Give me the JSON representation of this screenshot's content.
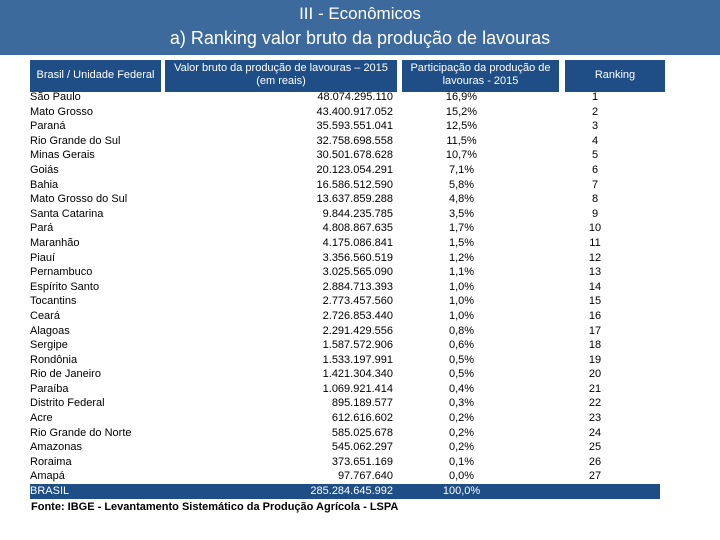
{
  "slide": {
    "section_title": "III - Econômicos",
    "subtitle": "a) Ranking valor  bruto da produção de lavouras"
  },
  "table": {
    "headers": {
      "state": "Brasil / Unidade Federal",
      "value_line1": "Valor  bruto da produção de lavouras – 2015",
      "value_line2": "(em reais)",
      "share_line1": "Participação da produção de",
      "share_line2": "lavouras - 2015",
      "rank": "Ranking"
    },
    "rows": [
      {
        "uf": "São Paulo",
        "value": "48.074.295.110",
        "share": "16,9%",
        "rank": "1"
      },
      {
        "uf": "Mato Grosso",
        "value": "43.400.917.052",
        "share": "15,2%",
        "rank": "2"
      },
      {
        "uf": "Paraná",
        "value": "35.593.551.041",
        "share": "12,5%",
        "rank": "3"
      },
      {
        "uf": "Rio Grande do Sul",
        "value": "32.758.698.558",
        "share": "11,5%",
        "rank": "4"
      },
      {
        "uf": "Minas Gerais",
        "value": "30.501.678.628",
        "share": "10,7%",
        "rank": "5"
      },
      {
        "uf": "Goiás",
        "value": "20.123.054.291",
        "share": "7,1%",
        "rank": "6"
      },
      {
        "uf": "Bahia",
        "value": "16.586.512.590",
        "share": "5,8%",
        "rank": "7"
      },
      {
        "uf": "Mato Grosso do Sul",
        "value": "13.637.859.288",
        "share": "4,8%",
        "rank": "8"
      },
      {
        "uf": "Santa Catarina",
        "value": "9.844.235.785",
        "share": "3,5%",
        "rank": "9"
      },
      {
        "uf": "Pará",
        "value": "4.808.867.635",
        "share": "1,7%",
        "rank": "10"
      },
      {
        "uf": "Maranhão",
        "value": "4.175.086.841",
        "share": "1,5%",
        "rank": "11"
      },
      {
        "uf": "Piauí",
        "value": "3.356.560.519",
        "share": "1,2%",
        "rank": "12"
      },
      {
        "uf": "Pernambuco",
        "value": "3.025.565.090",
        "share": "1,1%",
        "rank": "13"
      },
      {
        "uf": "Espírito Santo",
        "value": "2.884.713.393",
        "share": "1,0%",
        "rank": "14"
      },
      {
        "uf": "Tocantins",
        "value": "2.773.457.560",
        "share": "1,0%",
        "rank": "15"
      },
      {
        "uf": "Ceará",
        "value": "2.726.853.440",
        "share": "1,0%",
        "rank": "16"
      },
      {
        "uf": "Alagoas",
        "value": "2.291.429.556",
        "share": "0,8%",
        "rank": "17"
      },
      {
        "uf": "Sergipe",
        "value": "1.587.572.906",
        "share": "0,6%",
        "rank": "18"
      },
      {
        "uf": "Rondônia",
        "value": "1.533.197.991",
        "share": "0,5%",
        "rank": "19"
      },
      {
        "uf": "Rio de Janeiro",
        "value": "1.421.304.340",
        "share": "0,5%",
        "rank": "20"
      },
      {
        "uf": "Paraíba",
        "value": "1.069.921.414",
        "share": "0,4%",
        "rank": "21"
      },
      {
        "uf": "Distrito Federal",
        "value": "895.189.577",
        "share": "0,3%",
        "rank": "22"
      },
      {
        "uf": "Acre",
        "value": "612.616.602",
        "share": "0,2%",
        "rank": "23"
      },
      {
        "uf": "Rio Grande do Norte",
        "value": "585.025.678",
        "share": "0,2%",
        "rank": "24"
      },
      {
        "uf": "Amazonas",
        "value": "545.062.297",
        "share": "0,2%",
        "rank": "25"
      },
      {
        "uf": "Roraima",
        "value": "373.651.169",
        "share": "0,1%",
        "rank": "26"
      },
      {
        "uf": "Amapá",
        "value": "97.767.640",
        "share": "0,0%",
        "rank": "27"
      }
    ],
    "total": {
      "uf": "BRASIL",
      "value": "285.284.645.992",
      "share": "100,0%",
      "rank": ""
    }
  },
  "source": "Fonte: IBGE - Levantamento Sistemático da Produção Agrícola - LSPA",
  "colors": {
    "banner": "#3d6a9c",
    "header": "#1f4e86",
    "text": "#000000"
  }
}
